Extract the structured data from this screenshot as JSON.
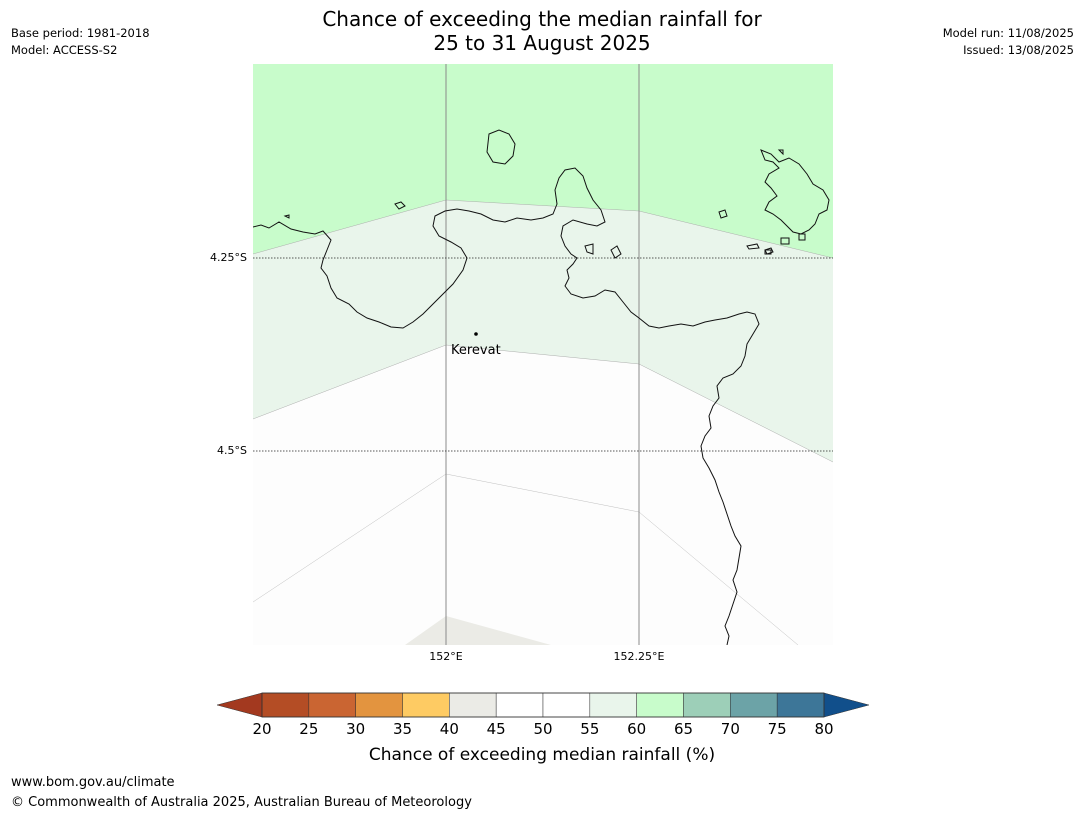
{
  "header": {
    "title_line1": "Chance of exceeding the median rainfall for",
    "title_line2": "25 to 31 August 2025",
    "base_period": "Base period: 1981-2018",
    "model": "Model: ACCESS-S2",
    "model_run": "Model run: 11/08/2025",
    "issued": "Issued: 13/08/2025"
  },
  "map": {
    "latitude_labels": [
      "4.25°S",
      "4.5°S"
    ],
    "longitude_labels": [
      "152°E",
      "152.25°E"
    ],
    "places": [
      {
        "name": "Kerevat"
      }
    ],
    "fill_colors": {
      "band_60_65": "#c8fccb",
      "band_55_60": "#e9f5eb",
      "band_50_55": "#fdfdfd",
      "band_40_45": "#ebebe6"
    }
  },
  "colorbar": {
    "title": "Chance of exceeding median rainfall (%)",
    "ticks": [
      "20",
      "25",
      "30",
      "35",
      "40",
      "45",
      "50",
      "55",
      "60",
      "65",
      "70",
      "75",
      "80"
    ],
    "under_color": "#a3391f",
    "over_color": "#114f8b",
    "colors": [
      "#b44d25",
      "#ca6532",
      "#e3943f",
      "#fecb63",
      "#ebebe6",
      "#ffffff",
      "#ffffff",
      "#e9f5eb",
      "#c8fccb",
      "#9dcfb8",
      "#6ca3a7",
      "#3d7698"
    ]
  },
  "footer": {
    "url": "www.bom.gov.au/climate",
    "copyright": "© Commonwealth of Australia 2025, Australian Bureau of Meteorology"
  }
}
